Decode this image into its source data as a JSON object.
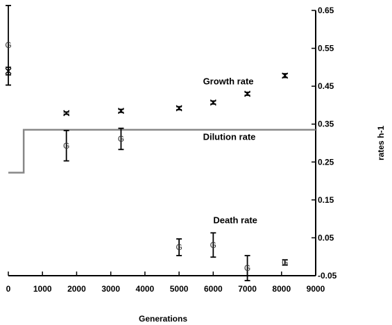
{
  "chart_data": {
    "type": "scatter",
    "xlabel": "Generations",
    "ylabel": "rates h-1",
    "xlim": [
      0,
      9000
    ],
    "ylim": [
      -0.05,
      0.65
    ],
    "x_ticks": [
      "0",
      "1000",
      "2000",
      "3000",
      "4000",
      "5000",
      "6000",
      "7000",
      "8000",
      "9000"
    ],
    "y_ticks": [
      "0.65",
      "0.55",
      "0.45",
      "0.35",
      "0.25",
      "0.15",
      "0.05",
      "-0.05"
    ],
    "grid": false,
    "y_axis_side": "right",
    "annotations": [
      {
        "text": "Growth rate",
        "x": 5700,
        "y": 0.455
      },
      {
        "text": "Dilution rate",
        "x": 5700,
        "y": 0.308
      },
      {
        "text": "Death rate",
        "x": 6000,
        "y": 0.088
      }
    ],
    "series": [
      {
        "marker": "x",
        "points": [
          {
            "x": 0,
            "y": 0.49,
            "err": 0.01
          },
          {
            "x": 1700,
            "y": 0.379,
            "err": 0.003
          },
          {
            "x": 3300,
            "y": 0.385,
            "err": 0.004
          },
          {
            "x": 5000,
            "y": 0.392,
            "err": 0.004
          },
          {
            "x": 6000,
            "y": 0.407,
            "err": 0.004
          },
          {
            "x": 7000,
            "y": 0.43,
            "err": 0.004
          },
          {
            "x": 8100,
            "y": 0.478,
            "err": 0.005
          }
        ]
      },
      {
        "marker": "G",
        "points": [
          {
            "x": 0,
            "y": 0.558,
            "err": 0.105
          },
          {
            "x": 1700,
            "y": 0.293,
            "err": 0.04
          },
          {
            "x": 3300,
            "y": 0.311,
            "err": 0.028
          },
          {
            "x": 5000,
            "y": 0.025,
            "err": 0.022
          },
          {
            "x": 6000,
            "y": 0.031,
            "err": 0.032
          },
          {
            "x": 7000,
            "y": -0.03,
            "err": 0.033
          },
          {
            "x": 8100,
            "y": -0.015,
            "err": 0.007
          }
        ]
      },
      {
        "type": "step",
        "points": [
          {
            "x": 0,
            "y": 0.222
          },
          {
            "x": 450,
            "y": 0.222
          },
          {
            "x": 450,
            "y": 0.335
          },
          {
            "x": 9000,
            "y": 0.335
          }
        ]
      }
    ]
  }
}
